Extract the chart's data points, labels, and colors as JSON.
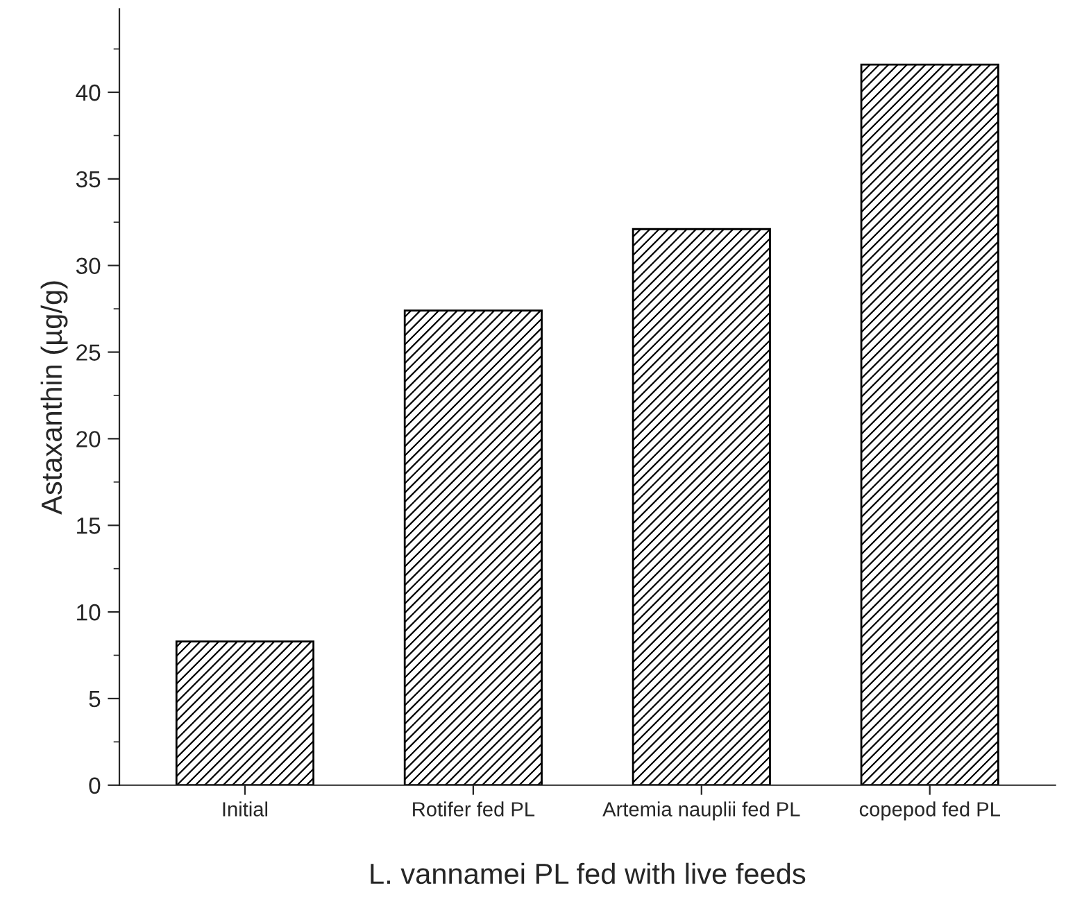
{
  "chart_data": {
    "type": "bar",
    "xlabel": "L. vannamei PL fed with live feeds",
    "ylabel": "Astaxanthin (µg/g)",
    "categories": [
      "Initial",
      "Rotifer fed PL",
      "Artemia nauplii fed PL",
      "copepod fed PL"
    ],
    "values": [
      8.3,
      27.4,
      32.1,
      41.6
    ],
    "color": "#000000",
    "ylim": [
      0,
      44.8
    ],
    "yticks": [
      0,
      5,
      10,
      15,
      20,
      25,
      30,
      35,
      40
    ],
    "grid": false,
    "legend": false
  }
}
